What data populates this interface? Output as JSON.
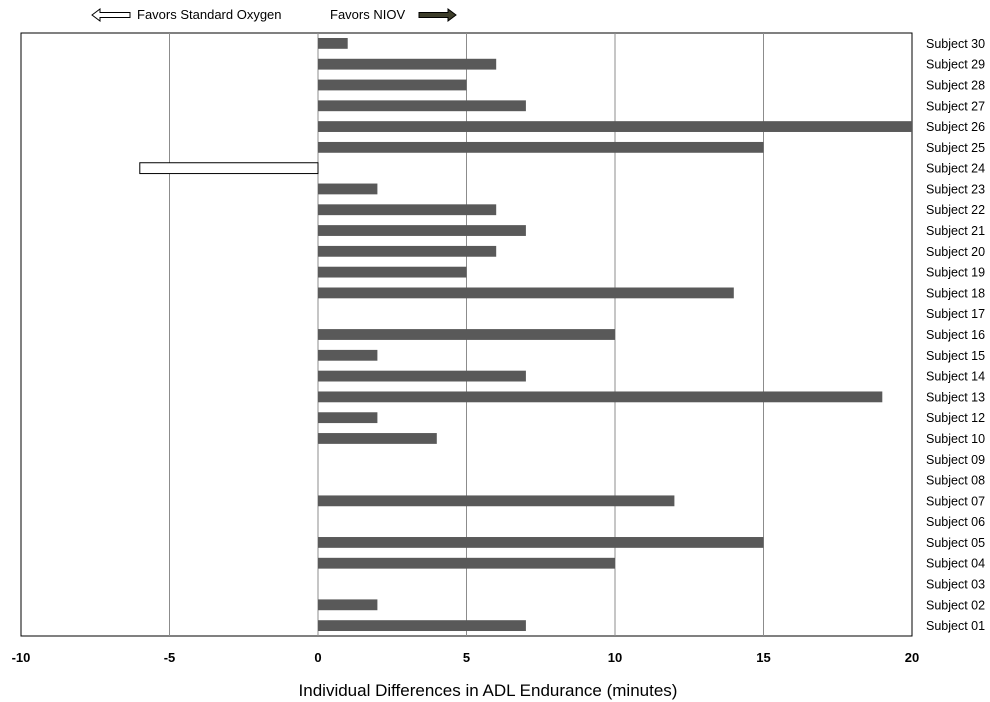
{
  "legend": {
    "negative_label": "Favors Standard Oxygen",
    "positive_label": "Favors NIOV",
    "negative_color": "#ffffff",
    "positive_color": "#3d3d2a"
  },
  "chart_data": {
    "type": "bar",
    "orientation": "horizontal",
    "xlabel": "Individual Differences in ADL Endurance (minutes)",
    "ylabel": "",
    "xlim": [
      -10,
      20
    ],
    "xticks": [
      -10,
      -5,
      0,
      5,
      10,
      15,
      20
    ],
    "grid": true,
    "legend_position": "top-left",
    "bar_color": "#595959",
    "negative_bar_color": "#ffffff",
    "categories": [
      "Subject 30",
      "Subject 29",
      "Subject 28",
      "Subject 27",
      "Subject 26",
      "Subject 25",
      "Subject 24",
      "Subject 23",
      "Subject 22",
      "Subject 21",
      "Subject 20",
      "Subject 19",
      "Subject 18",
      "Subject 17",
      "Subject 16",
      "Subject 15",
      "Subject 14",
      "Subject 13",
      "Subject 12",
      "Subject 10",
      "Subject 09",
      "Subject 08",
      "Subject 07",
      "Subject 06",
      "Subject 05",
      "Subject 04",
      "Subject 03",
      "Subject 02",
      "Subject 01"
    ],
    "values": [
      1,
      6,
      5,
      7,
      20,
      15,
      -6,
      2,
      6,
      7,
      6,
      5,
      14,
      0,
      10,
      2,
      7,
      19,
      2,
      4,
      0,
      0,
      12,
      0,
      15,
      10,
      0,
      2,
      7
    ]
  }
}
